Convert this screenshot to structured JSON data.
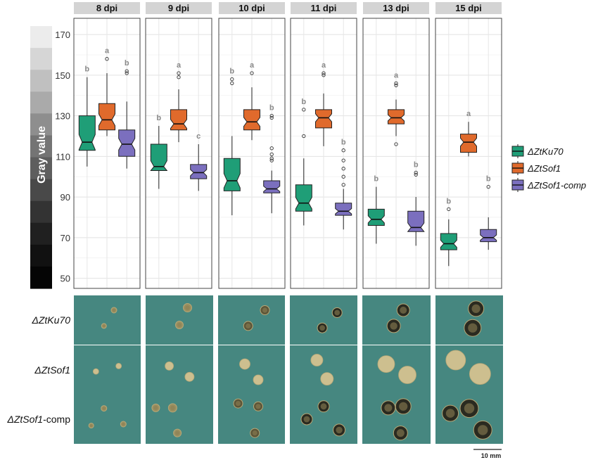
{
  "chart_data": {
    "type": "box",
    "panels": [
      "8 dpi",
      "9 dpi",
      "10 dpi",
      "11 dpi",
      "13 dpi",
      "15 dpi"
    ],
    "ylabel": "Gray value",
    "ylim": [
      45,
      178
    ],
    "yticks": [
      50,
      70,
      90,
      110,
      130,
      150,
      170
    ],
    "grid": true,
    "legend_position": "right",
    "series": [
      {
        "name": "ΔZtKu70",
        "color": "#1f9e77"
      },
      {
        "name": "ΔZtSof1",
        "color": "#e06a2c"
      },
      {
        "name": "ΔZtSof1-comp",
        "color": "#7b6fbe"
      }
    ],
    "boxes": [
      [
        {
          "min": 105,
          "q1": 113,
          "median": 117,
          "q3": 130,
          "max": 149,
          "outliers": [],
          "letter": "b"
        },
        {
          "min": 120,
          "q1": 123,
          "median": 128,
          "q3": 136,
          "max": 151,
          "outliers": [
            158
          ],
          "letter": "a"
        },
        {
          "min": 104,
          "q1": 110,
          "median": 116,
          "q3": 123,
          "max": 137,
          "outliers": [
            151,
            152
          ],
          "letter": "b"
        }
      ],
      [
        {
          "min": 94,
          "q1": 103,
          "median": 105,
          "q3": 116,
          "max": 125,
          "outliers": [],
          "letter": "b"
        },
        {
          "min": 117,
          "q1": 123,
          "median": 126,
          "q3": 133,
          "max": 143,
          "outliers": [
            149,
            151
          ],
          "letter": "a"
        },
        {
          "min": 93,
          "q1": 99,
          "median": 102,
          "q3": 106,
          "max": 116,
          "outliers": [],
          "letter": "c"
        }
      ],
      [
        {
          "min": 81,
          "q1": 93,
          "median": 98,
          "q3": 109,
          "max": 120,
          "outliers": [
            146,
            148
          ],
          "letter": "b"
        },
        {
          "min": 118,
          "q1": 123,
          "median": 127,
          "q3": 133,
          "max": 144,
          "outliers": [
            151
          ],
          "letter": "a"
        },
        {
          "min": 82,
          "q1": 92,
          "median": 94,
          "q3": 98,
          "max": 103,
          "outliers": [
            108,
            109,
            111,
            114,
            129,
            130
          ],
          "letter": "b"
        }
      ],
      [
        {
          "min": 76,
          "q1": 83,
          "median": 87,
          "q3": 96,
          "max": 109,
          "outliers": [
            120,
            133
          ],
          "letter": "b"
        },
        {
          "min": 115,
          "q1": 124,
          "median": 129,
          "q3": 133,
          "max": 141,
          "outliers": [
            150,
            151
          ],
          "letter": "a"
        },
        {
          "min": 74,
          "q1": 81,
          "median": 83,
          "q3": 87,
          "max": 94,
          "outliers": [
            96,
            100,
            104,
            108,
            113
          ],
          "letter": "b"
        }
      ],
      [
        {
          "min": 67,
          "q1": 76,
          "median": 79,
          "q3": 84,
          "max": 95,
          "outliers": [],
          "letter": "b"
        },
        {
          "min": 120,
          "q1": 126,
          "median": 129,
          "q3": 133,
          "max": 138,
          "outliers": [
            116,
            145,
            146
          ],
          "letter": "a"
        },
        {
          "min": 66,
          "q1": 73,
          "median": 75,
          "q3": 83,
          "max": 90,
          "outliers": [
            101,
            102
          ],
          "letter": "b"
        }
      ],
      [
        {
          "min": 56,
          "q1": 64,
          "median": 67,
          "q3": 72,
          "max": 79,
          "outliers": [
            84
          ],
          "letter": "b"
        },
        {
          "min": 110,
          "q1": 112,
          "median": 117,
          "q3": 121,
          "max": 127,
          "outliers": [],
          "letter": "a"
        },
        {
          "min": 64,
          "q1": 68,
          "median": 70,
          "q3": 74,
          "max": 80,
          "outliers": [
            95
          ],
          "letter": "b"
        }
      ]
    ]
  },
  "gray_scale": [
    "#ffffff",
    "#ececec",
    "#d6d6d6",
    "#c0c0c0",
    "#aaaaaa",
    "#8e8e8e",
    "#747474",
    "#5e5e5e",
    "#494949",
    "#333333",
    "#202020",
    "#111111",
    "#050505"
  ],
  "photo_rows": [
    {
      "prefix": "ΔZtKu70",
      "suffix": ""
    },
    {
      "prefix": "ΔZtSof1",
      "suffix": ""
    },
    {
      "prefix": "ΔZtSof1",
      "suffix": "-comp"
    }
  ],
  "scalebar_label": "10 mm"
}
